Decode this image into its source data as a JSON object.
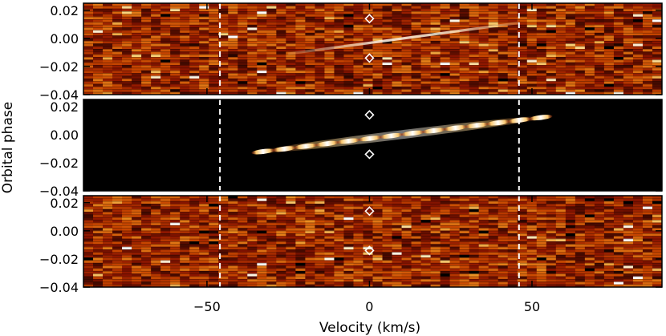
{
  "chart_data": {
    "type": "heatmap",
    "colormap": "black-red-orange-yellow-white",
    "xlabel": "Velocity (km/s)",
    "ylabel": "Orbital phase",
    "xlim": [
      -88,
      90
    ],
    "x_ticks": [
      -50,
      0,
      50
    ],
    "x_tick_labels": [
      "−50",
      "0",
      "50"
    ],
    "ylim": [
      -0.04,
      0.025
    ],
    "y_ticks": [
      -0.04,
      -0.02,
      0.0,
      0.02
    ],
    "y_tick_labels": [
      "−0.04",
      "−0.02",
      "0.00",
      "0.02"
    ],
    "vertical_dashed_lines_x": [
      -46,
      46
    ],
    "panels": [
      {
        "panel": "top",
        "content": "noisy residual map with faint tilted track",
        "diamond_markers": [
          {
            "x": 0,
            "y": 0.014
          },
          {
            "x": 0,
            "y": -0.014
          }
        ],
        "track": {
          "x_start": -25,
          "y_start": -0.011,
          "x_end": 46,
          "y_end": 0.011
        }
      },
      {
        "panel": "middle",
        "content": "model trail on black background",
        "diamond_markers": [
          {
            "x": 0,
            "y": 0.014
          },
          {
            "x": 0,
            "y": -0.014
          }
        ],
        "track": {
          "x_start": -36,
          "y_start": -0.013,
          "x_end": 56,
          "y_end": 0.013
        }
      },
      {
        "panel": "bottom",
        "content": "noisy residual map after model subtraction",
        "diamond_markers": [
          {
            "x": 0,
            "y": 0.014
          },
          {
            "x": 0,
            "y": -0.014
          }
        ]
      }
    ]
  }
}
